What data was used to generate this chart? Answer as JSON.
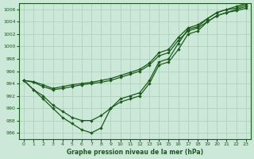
{
  "xlabel": "Graphe pression niveau de la mer (hPa)",
  "xlim": [
    -0.5,
    23.5
  ],
  "ylim": [
    985,
    1007
  ],
  "yticks": [
    986,
    988,
    990,
    992,
    994,
    996,
    998,
    1000,
    1002,
    1004,
    1006
  ],
  "xticks": [
    0,
    1,
    2,
    3,
    4,
    5,
    6,
    7,
    8,
    9,
    10,
    11,
    12,
    13,
    14,
    15,
    16,
    17,
    18,
    19,
    20,
    21,
    22,
    23
  ],
  "bg_color": "#cce8d8",
  "grid_color": "#aacebb",
  "line_color": "#1a5c1a",
  "line1_x": [
    0,
    1,
    2,
    3,
    4,
    5,
    6,
    7,
    8,
    9,
    10,
    11,
    12,
    13,
    14,
    15,
    16,
    17,
    18,
    19,
    20,
    21,
    22,
    23
  ],
  "line1_y": [
    994.5,
    993.0,
    991.5,
    990.0,
    988.5,
    987.5,
    986.5,
    986.0,
    986.8,
    990.0,
    991.0,
    991.5,
    992.0,
    994.0,
    997.0,
    997.5,
    999.5,
    1002.0,
    1002.5,
    1004.0,
    1005.0,
    1005.5,
    1005.8,
    1006.2
  ],
  "line2_x": [
    0,
    1,
    2,
    3,
    4,
    5,
    6,
    7,
    8,
    9,
    10,
    11,
    12,
    13,
    14,
    15,
    16,
    17,
    18,
    19,
    20,
    21,
    22,
    23
  ],
  "line2_y": [
    994.5,
    993.0,
    992.0,
    990.5,
    989.5,
    988.5,
    988.0,
    988.0,
    988.8,
    990.0,
    991.5,
    992.0,
    992.5,
    994.5,
    997.5,
    998.0,
    1000.5,
    1002.8,
    1003.2,
    1004.5,
    1005.5,
    1006.0,
    1006.2,
    1006.8
  ],
  "line3_x": [
    0,
    1,
    2,
    3,
    4,
    5,
    6,
    7,
    8,
    9,
    10,
    11,
    12,
    13,
    14,
    15,
    16,
    17,
    18,
    19,
    20,
    21,
    22,
    23
  ],
  "line3_y": [
    994.5,
    994.2,
    993.5,
    993.0,
    993.2,
    993.5,
    993.8,
    994.0,
    994.2,
    994.5,
    995.0,
    995.5,
    996.0,
    997.0,
    998.5,
    999.0,
    1001.0,
    1002.5,
    1003.0,
    1004.0,
    1005.0,
    1005.5,
    1006.0,
    1006.5
  ],
  "line4_x": [
    0,
    1,
    2,
    3,
    4,
    5,
    6,
    7,
    8,
    9,
    10,
    11,
    12,
    13,
    14,
    15,
    16,
    17,
    18,
    19,
    20,
    21,
    22,
    23
  ],
  "line4_y": [
    994.5,
    994.3,
    993.8,
    993.2,
    993.5,
    993.8,
    994.0,
    994.2,
    994.5,
    994.8,
    995.3,
    995.8,
    996.3,
    997.3,
    999.0,
    999.5,
    1001.5,
    1003.0,
    1003.5,
    1004.5,
    1005.5,
    1006.0,
    1006.5,
    1007.0
  ]
}
